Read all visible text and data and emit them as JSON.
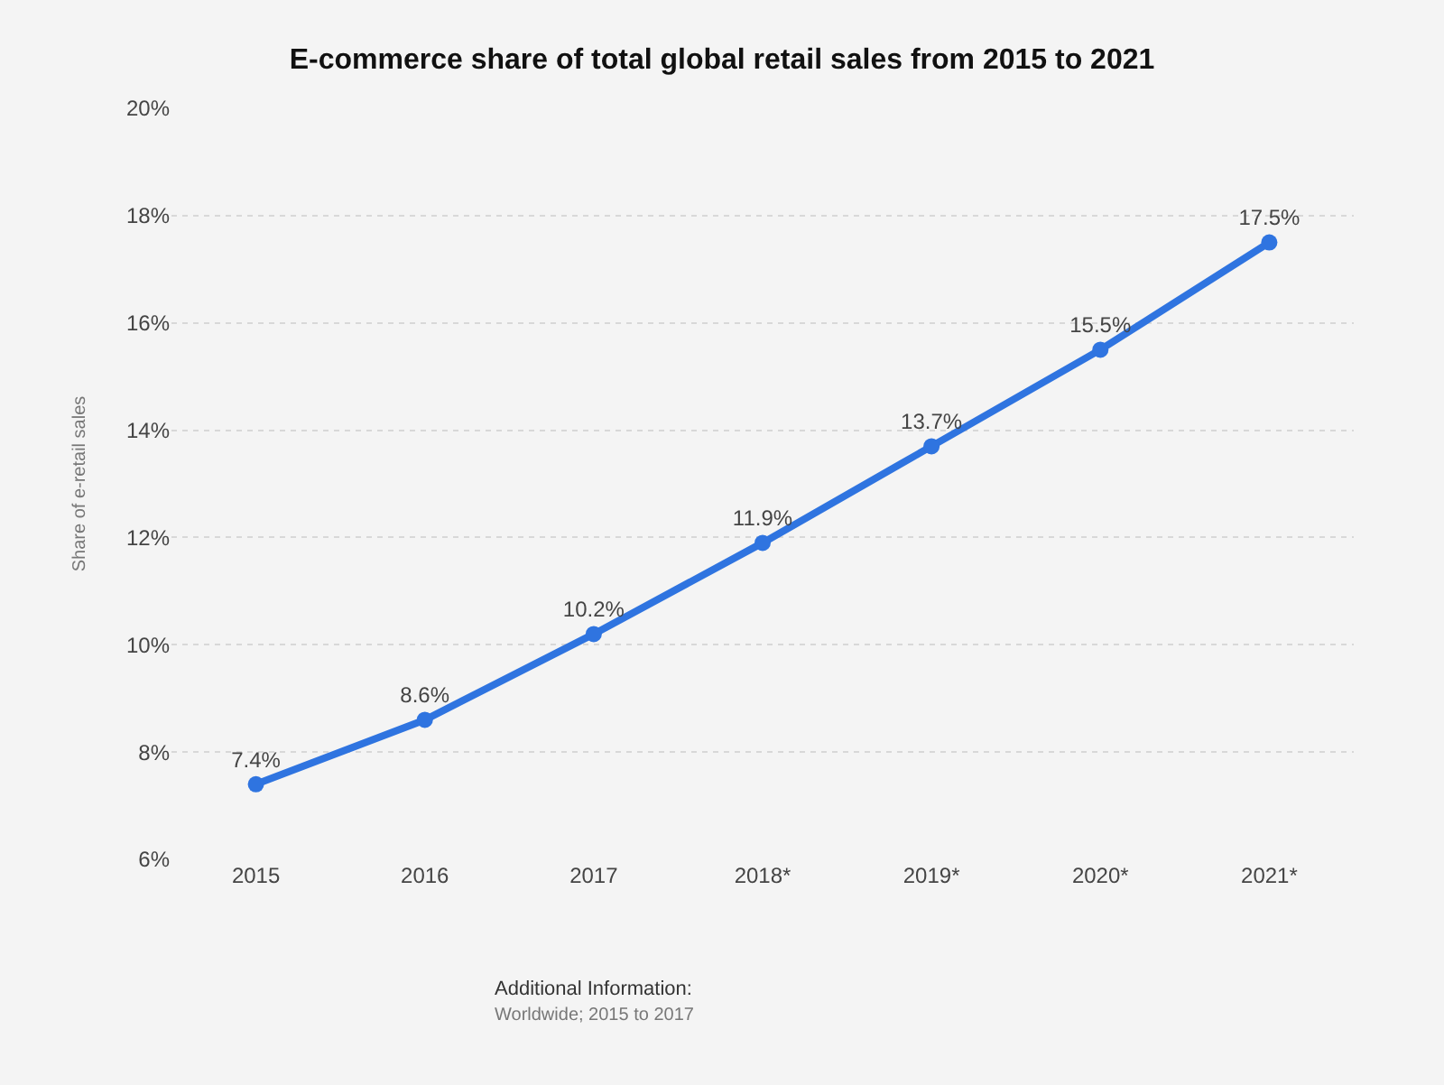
{
  "chart_data": {
    "type": "line",
    "title": "E-commerce share of total global retail sales from 2015 to 2021",
    "ylabel": "Share of e-retail sales",
    "categories": [
      "2015",
      "2016",
      "2017",
      "2018*",
      "2019*",
      "2020*",
      "2021*"
    ],
    "values": [
      7.4,
      8.6,
      10.2,
      11.9,
      13.7,
      15.5,
      17.5
    ],
    "value_labels": [
      "7.4%",
      "8.6%",
      "10.2%",
      "11.9%",
      "13.7%",
      "15.5%",
      "17.5%"
    ],
    "color": "#2f74e0",
    "marker": "circle",
    "grid": "y",
    "ylim": [
      6,
      20
    ],
    "yticks": [
      {
        "value": 6,
        "label": "6%"
      },
      {
        "value": 8,
        "label": "8%"
      },
      {
        "value": 10,
        "label": "10%"
      },
      {
        "value": 12,
        "label": "12%"
      },
      {
        "value": 14,
        "label": "14%"
      },
      {
        "value": 16,
        "label": "16%"
      },
      {
        "value": 18,
        "label": "18%"
      },
      {
        "value": 20,
        "label": "20%"
      }
    ],
    "annotations": [
      "Additional Information:",
      "Worldwide; 2015 to 2017"
    ]
  }
}
